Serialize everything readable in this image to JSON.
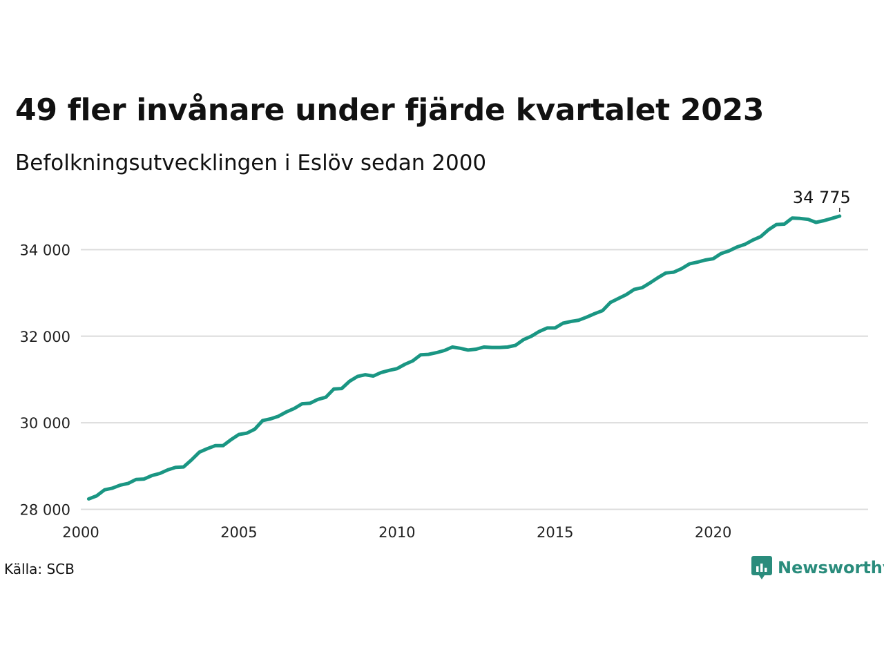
{
  "header": {
    "title": "49 fler invånare under fjärde kvartalet 2023",
    "subtitle": "Befolkningsutvecklingen i Eslöv sedan 2000"
  },
  "footer": {
    "source": "Källa: SCB",
    "brand": "Newsworthy",
    "brand_icon": "newsworthy-logo-icon",
    "brand_color": "#2a8c7c"
  },
  "chart_data": {
    "type": "line",
    "title": "49 fler invånare under fjärde kvartalet 2023",
    "subtitle": "Befolkningsutvecklingen i Eslöv sedan 2000",
    "xlabel": "",
    "ylabel": "",
    "xlim": [
      2000,
      2024.9
    ],
    "ylim": [
      27800,
      35300
    ],
    "x_ticks": [
      2000,
      2005,
      2010,
      2015,
      2020
    ],
    "y_ticks": [
      28000,
      30000,
      32000,
      34000
    ],
    "y_tick_labels": [
      "28 000",
      "30 000",
      "32 000",
      "34 000"
    ],
    "grid": "horizontal",
    "line_color": "#1a9683",
    "end_label": "34 775",
    "series": [
      {
        "x": [
          2000.25,
          2000.5,
          2000.75,
          2001.0,
          2001.25,
          2001.5,
          2001.75,
          2002.0,
          2002.25,
          2002.5,
          2002.75,
          2003.0,
          2003.25,
          2003.5,
          2003.75,
          2004.0,
          2004.25,
          2004.5,
          2004.75,
          2005.0,
          2005.25,
          2005.5,
          2005.75,
          2006.0,
          2006.25,
          2006.5,
          2006.75,
          2007.0,
          2007.25,
          2007.5,
          2007.75,
          2008.0,
          2008.25,
          2008.5,
          2008.75,
          2009.0,
          2009.25,
          2009.5,
          2009.75,
          2010.0,
          2010.25,
          2010.5,
          2010.75,
          2011.0,
          2011.25,
          2011.5,
          2011.75,
          2012.0,
          2012.25,
          2012.5,
          2012.75,
          2013.0,
          2013.25,
          2013.5,
          2013.75,
          2014.0,
          2014.25,
          2014.5,
          2014.75,
          2015.0,
          2015.25,
          2015.5,
          2015.75,
          2016.0,
          2016.25,
          2016.5,
          2016.75,
          2017.0,
          2017.25,
          2017.5,
          2017.75,
          2018.0,
          2018.25,
          2018.5,
          2018.75,
          2019.0,
          2019.25,
          2019.5,
          2019.75,
          2020.0,
          2020.25,
          2020.5,
          2020.75,
          2021.0,
          2021.25,
          2021.5,
          2021.75,
          2022.0,
          2022.25,
          2022.5,
          2022.75,
          2023.0,
          2023.25,
          2023.5,
          2023.75,
          2024.0
        ],
        "values": [
          28240,
          28310,
          28450,
          28490,
          28560,
          28600,
          28690,
          28700,
          28780,
          28830,
          28910,
          28970,
          28980,
          29140,
          29320,
          29400,
          29470,
          29470,
          29610,
          29730,
          29760,
          29850,
          30050,
          30090,
          30150,
          30250,
          30330,
          30440,
          30450,
          30540,
          30590,
          30780,
          30790,
          30960,
          31070,
          31110,
          31080,
          31160,
          31210,
          31250,
          31350,
          31430,
          31570,
          31580,
          31620,
          31670,
          31750,
          31720,
          31680,
          31700,
          31750,
          31740,
          31740,
          31750,
          31790,
          31920,
          32000,
          32110,
          32190,
          32190,
          32300,
          32340,
          32370,
          32440,
          32520,
          32590,
          32780,
          32870,
          32960,
          33080,
          33120,
          33230,
          33350,
          33460,
          33480,
          33560,
          33670,
          33710,
          33760,
          33790,
          33910,
          33970,
          34060,
          34120,
          34220,
          34300,
          34460,
          34580,
          34590,
          34730,
          34720,
          34700,
          34630,
          34670,
          34720,
          34775
        ]
      }
    ]
  }
}
